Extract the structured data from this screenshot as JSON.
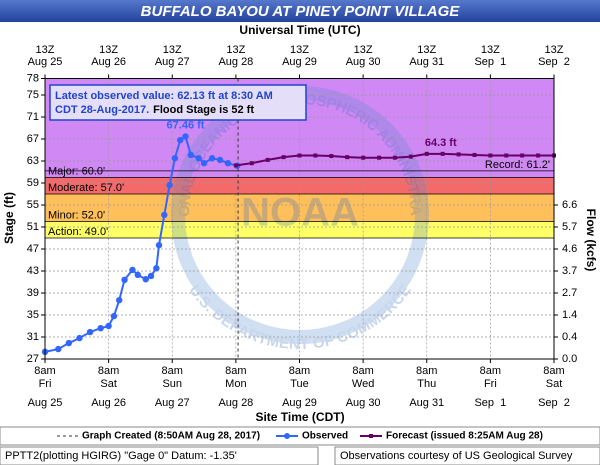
{
  "chart_data": {
    "type": "hydrograph",
    "title": "BUFFALO BAYOU AT PINEY POINT VILLAGE",
    "x_title_top": "Universal Time (UTC)",
    "x_title": "Site Time (CDT)",
    "y_title": "Stage (ft)",
    "y2_title": "Flow (kcfs)",
    "xlim": [
      "2017-08-25T08:00",
      "2017-09-02T08:00"
    ],
    "xticks": [
      {
        "value": "2017-08-25T08:00",
        "label": "8am",
        "weekday": "Fri",
        "date": "Aug 25",
        "utc": "13Z"
      },
      {
        "value": "2017-08-26T08:00",
        "label": "8am",
        "weekday": "Sat",
        "date": "Aug 26",
        "utc": "13Z"
      },
      {
        "value": "2017-08-27T08:00",
        "label": "8am",
        "weekday": "Sun",
        "date": "Aug 27",
        "utc": "13Z"
      },
      {
        "value": "2017-08-28T08:00",
        "label": "8am",
        "weekday": "Mon",
        "date": "Aug 28",
        "utc": "13Z"
      },
      {
        "value": "2017-08-29T08:00",
        "label": "8am",
        "weekday": "Tue",
        "date": "Aug 29",
        "utc": "13Z"
      },
      {
        "value": "2017-08-30T08:00",
        "label": "8am",
        "weekday": "Wed",
        "date": "Aug 30",
        "utc": "13Z"
      },
      {
        "value": "2017-08-31T08:00",
        "label": "8am",
        "weekday": "Thu",
        "date": "Aug 31",
        "utc": "13Z"
      },
      {
        "value": "2017-09-01T08:00",
        "label": "8am",
        "weekday": "Fri",
        "date": "Sep  1",
        "utc": "13Z"
      },
      {
        "value": "2017-09-02T08:00",
        "label": "8am",
        "weekday": "Sat",
        "date": "Sep  2",
        "utc": "13Z"
      }
    ],
    "ylim": [
      27,
      78
    ],
    "yticks": [
      27,
      31,
      35,
      39,
      43,
      47,
      51,
      55,
      59,
      63,
      67,
      71,
      75,
      78
    ],
    "y2ticks": [
      {
        "stage": 55,
        "value": 6.6
      },
      {
        "stage": 51,
        "value": 5.7
      },
      {
        "stage": 47,
        "value": 4.6
      },
      {
        "stage": 43,
        "value": 3.7
      },
      {
        "stage": 39,
        "value": 2.7
      },
      {
        "stage": 35,
        "value": 1.4
      },
      {
        "stage": 31,
        "value": 0.4
      },
      {
        "stage": 27,
        "value": 0,
        "label": "0.0"
      }
    ],
    "grid": true,
    "flood_stages": [
      {
        "label": "Action: 49.0'",
        "value": 49,
        "color": "#ffff66"
      },
      {
        "label": "Minor: 52.0'",
        "value": 52,
        "color": "#ffbf5a"
      },
      {
        "label": "Moderate: 57.0'",
        "value": 57,
        "color": "#f46a6a"
      },
      {
        "label": "Major: 60.0'",
        "value": 60,
        "color": "#d088f4"
      }
    ],
    "record": {
      "label": "Record: 61.2'",
      "value": 61.2
    },
    "annotation": {
      "line1": "Latest observed value: 62.13 ft at 8:30 AM",
      "line2": "CDT 28-Aug-2017.",
      "line2b": "Flood Stage is 52 ft"
    },
    "created": {
      "x": "2017-08-28T08:50",
      "label": "Graph Created (8:50AM Aug 28, 2017)"
    },
    "series": [
      {
        "name": "Observed",
        "color": "#3366ff",
        "marker": "circle",
        "x": [
          "2017-08-25T08:00",
          "2017-08-25T13:00",
          "2017-08-25T17:00",
          "2017-08-25T21:00",
          "2017-08-26T01:00",
          "2017-08-26T05:00",
          "2017-08-26T08:00",
          "2017-08-26T10:00",
          "2017-08-26T12:00",
          "2017-08-26T14:00",
          "2017-08-26T17:00",
          "2017-08-26T19:00",
          "2017-08-26T22:00",
          "2017-08-27T00:00",
          "2017-08-27T02:00",
          "2017-08-27T03:00",
          "2017-08-27T05:00",
          "2017-08-27T07:00",
          "2017-08-27T09:00",
          "2017-08-27T11:00",
          "2017-08-27T13:00",
          "2017-08-27T15:00",
          "2017-08-27T18:00",
          "2017-08-27T20:00",
          "2017-08-27T23:00",
          "2017-08-28T02:00",
          "2017-08-28T05:00",
          "2017-08-28T08:30"
        ],
        "values": [
          28.3,
          28.8,
          29.9,
          30.8,
          31.9,
          32.6,
          33.0,
          34.8,
          37.7,
          41.4,
          43.2,
          42.3,
          41.5,
          42.1,
          43.5,
          47.7,
          53.2,
          58.6,
          63.5,
          66.8,
          67.46,
          64.1,
          63.5,
          62.6,
          63.5,
          63.2,
          62.6,
          62.13
        ],
        "value_labels": [
          null,
          null,
          null,
          null,
          null,
          null,
          null,
          null,
          null,
          null,
          null,
          null,
          null,
          null,
          null,
          null,
          null,
          null,
          null,
          null,
          "67.46 ft",
          null,
          null,
          null,
          null,
          null,
          null,
          null
        ]
      },
      {
        "name": "Forecast (issued 8:25AM Aug 28)",
        "color": "#660066",
        "marker": "square",
        "x": [
          "2017-08-28T08:00",
          "2017-08-28T14:00",
          "2017-08-28T20:00",
          "2017-08-29T02:00",
          "2017-08-29T08:00",
          "2017-08-29T14:00",
          "2017-08-29T20:00",
          "2017-08-30T02:00",
          "2017-08-30T08:00",
          "2017-08-30T14:00",
          "2017-08-30T20:00",
          "2017-08-31T02:00",
          "2017-08-31T08:00",
          "2017-08-31T14:00",
          "2017-08-31T20:00",
          "2017-09-01T02:00",
          "2017-09-01T08:00",
          "2017-09-01T14:00",
          "2017-09-01T20:00",
          "2017-09-02T02:00",
          "2017-09-02T08:00"
        ],
        "values": [
          62.2,
          62.6,
          63.2,
          63.7,
          64.0,
          64.0,
          63.9,
          63.7,
          63.6,
          63.6,
          63.6,
          63.8,
          64.3,
          64.3,
          64.2,
          64.1,
          64.0,
          64.0,
          64.0,
          64.0,
          64.0
        ],
        "value_labels": [
          null,
          null,
          null,
          null,
          null,
          null,
          null,
          null,
          null,
          null,
          null,
          null,
          "64.3 ft",
          null,
          null,
          null,
          null,
          null,
          null,
          null,
          null
        ]
      }
    ],
    "footer_left": "PPTT2(plotting HGIRG) \"Gage 0\" Datum: -1.35'",
    "footer_right": "Observations courtesy of US Geological Survey",
    "watermark": [
      "NATIONAL OCEANIC AND ATMOSPHERIC ADMINISTRATION",
      "U.S. DEPARTMENT OF COMMERCE",
      "NOAA"
    ]
  }
}
